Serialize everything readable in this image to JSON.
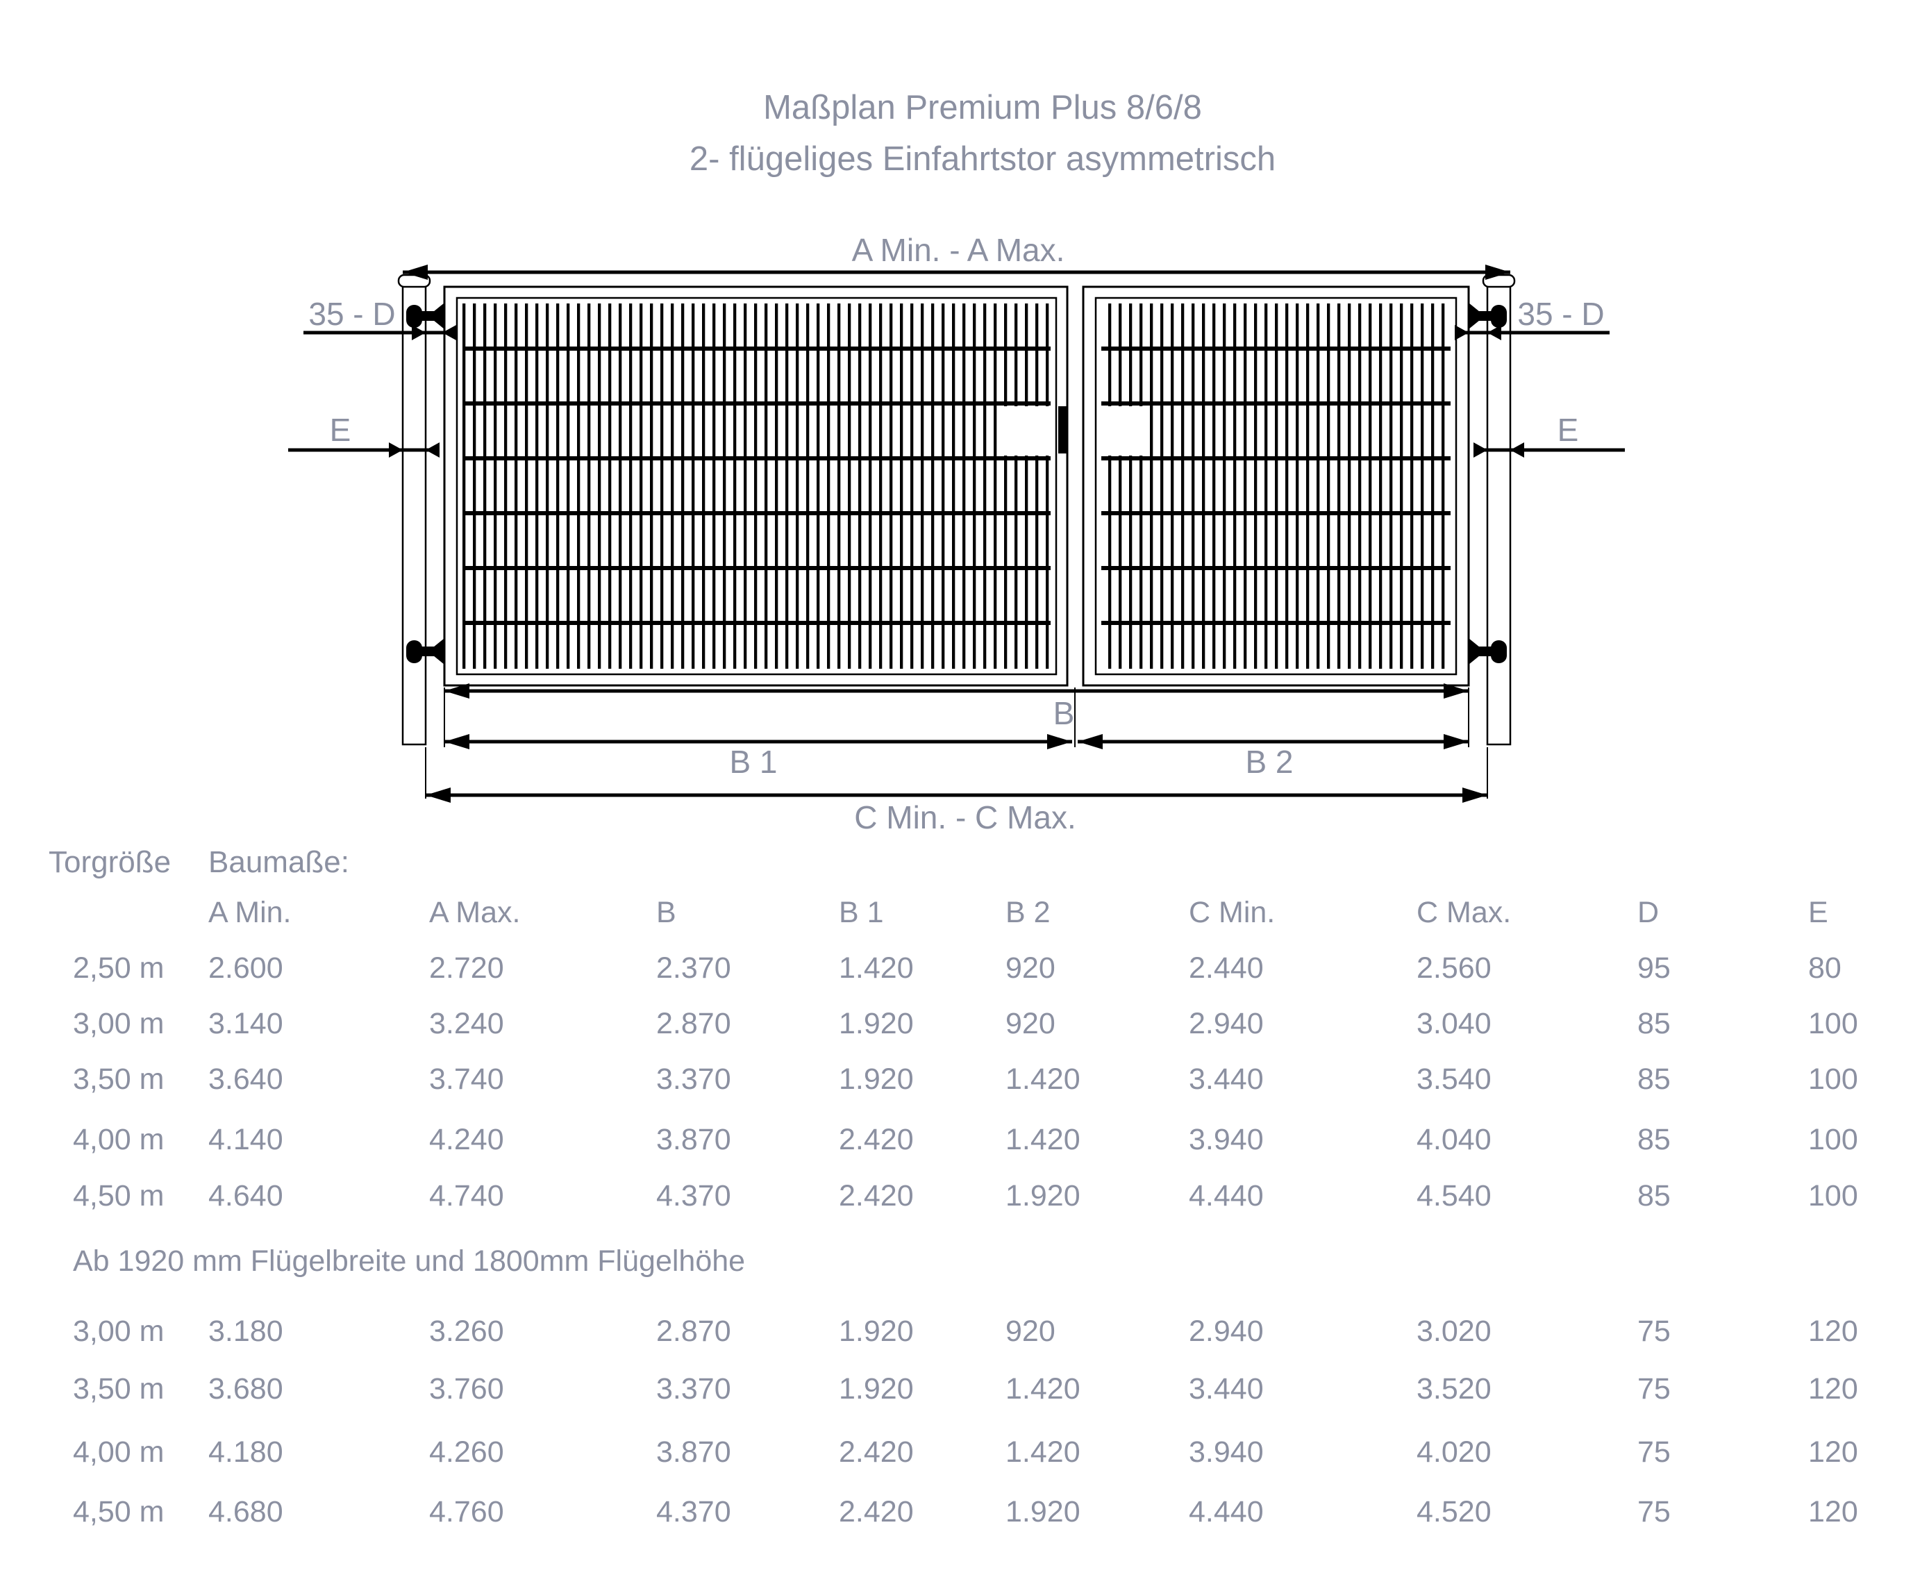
{
  "title": {
    "line1": "Maßplan Premium Plus 8/6/8",
    "line2": "2- flügeliges Einfahrtstor asymmetrisch"
  },
  "diagram": {
    "a_label": "A Min. - A Max.",
    "d_label": "35 - D",
    "e_label": "E",
    "b_label": "B",
    "b1_label": "B 1",
    "b2_label": "B 2",
    "c_label": "C Min. - C Max."
  },
  "table": {
    "group_left": "Torgröße",
    "group_right": "Baumaße:",
    "columns": [
      "A Min.",
      "A Max.",
      "B",
      "B 1",
      "B 2",
      "C Min.",
      "C Max.",
      "D",
      "E"
    ],
    "sections": [
      {
        "rows": [
          [
            "2,50 m",
            "2.600",
            "2.720",
            "2.370",
            "1.420",
            "920",
            "2.440",
            "2.560",
            "95",
            "80"
          ],
          [
            "3,00 m",
            "3.140",
            "3.240",
            "2.870",
            "1.920",
            "920",
            "2.940",
            "3.040",
            "85",
            "100"
          ],
          [
            "3,50 m",
            "3.640",
            "3.740",
            "3.370",
            "1.920",
            "1.420",
            "3.440",
            "3.540",
            "85",
            "100"
          ],
          [
            "4,00 m",
            "4.140",
            "4.240",
            "3.870",
            "2.420",
            "1.420",
            "3.940",
            "4.040",
            "85",
            "100"
          ],
          [
            "4,50 m",
            "4.640",
            "4.740",
            "4.370",
            "2.420",
            "1.920",
            "4.440",
            "4.540",
            "85",
            "100"
          ]
        ]
      },
      {
        "note": "Ab 1920 mm Flügelbreite und 1800mm Flügelhöhe",
        "rows": [
          [
            "3,00 m",
            "3.180",
            "3.260",
            "2.870",
            "1.920",
            "920",
            "2.940",
            "3.020",
            "75",
            "120"
          ],
          [
            "3,50 m",
            "3.680",
            "3.760",
            "3.370",
            "1.920",
            "1.420",
            "3.440",
            "3.520",
            "75",
            "120"
          ],
          [
            "4,00 m",
            "4.180",
            "4.260",
            "3.870",
            "2.420",
            "1.420",
            "3.940",
            "4.020",
            "75",
            "120"
          ],
          [
            "4,50 m",
            "4.680",
            "4.760",
            "4.370",
            "2.420",
            "1.920",
            "4.440",
            "4.520",
            "75",
            "120"
          ]
        ]
      }
    ]
  },
  "colors": {
    "text": "#8b90a1",
    "line": "#000000"
  }
}
